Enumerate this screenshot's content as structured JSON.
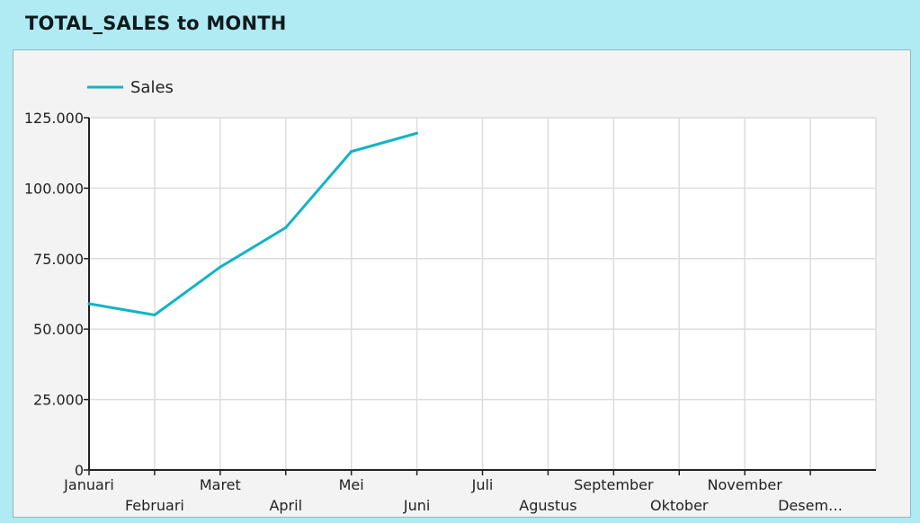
{
  "title": "TOTAL_SALES to MONTH",
  "colors": {
    "series": "#12b3c8",
    "background": "#b0eaf3",
    "panel": "#f3f3f3",
    "grid": "#dddddd"
  },
  "chart_data": {
    "type": "line",
    "title": "",
    "xlabel": "",
    "ylabel": "",
    "categories": [
      "Januari",
      "Februari",
      "Maret",
      "April",
      "Mei",
      "Juni",
      "Juli",
      "Agustus",
      "September",
      "Oktober",
      "November",
      "Desem…"
    ],
    "series": [
      {
        "name": "Sales",
        "values": [
          59000,
          55000,
          72000,
          86000,
          113000,
          119500,
          null,
          null,
          null,
          null,
          null,
          null
        ]
      }
    ],
    "ylim": [
      0,
      125000
    ],
    "yticks": [
      0,
      25000,
      50000,
      75000,
      100000,
      125000
    ],
    "ytick_labels": [
      "0",
      "25.000",
      "50.000",
      "75.000",
      "100.000",
      "125.000"
    ],
    "grid": true,
    "legend_position": "top-left"
  }
}
